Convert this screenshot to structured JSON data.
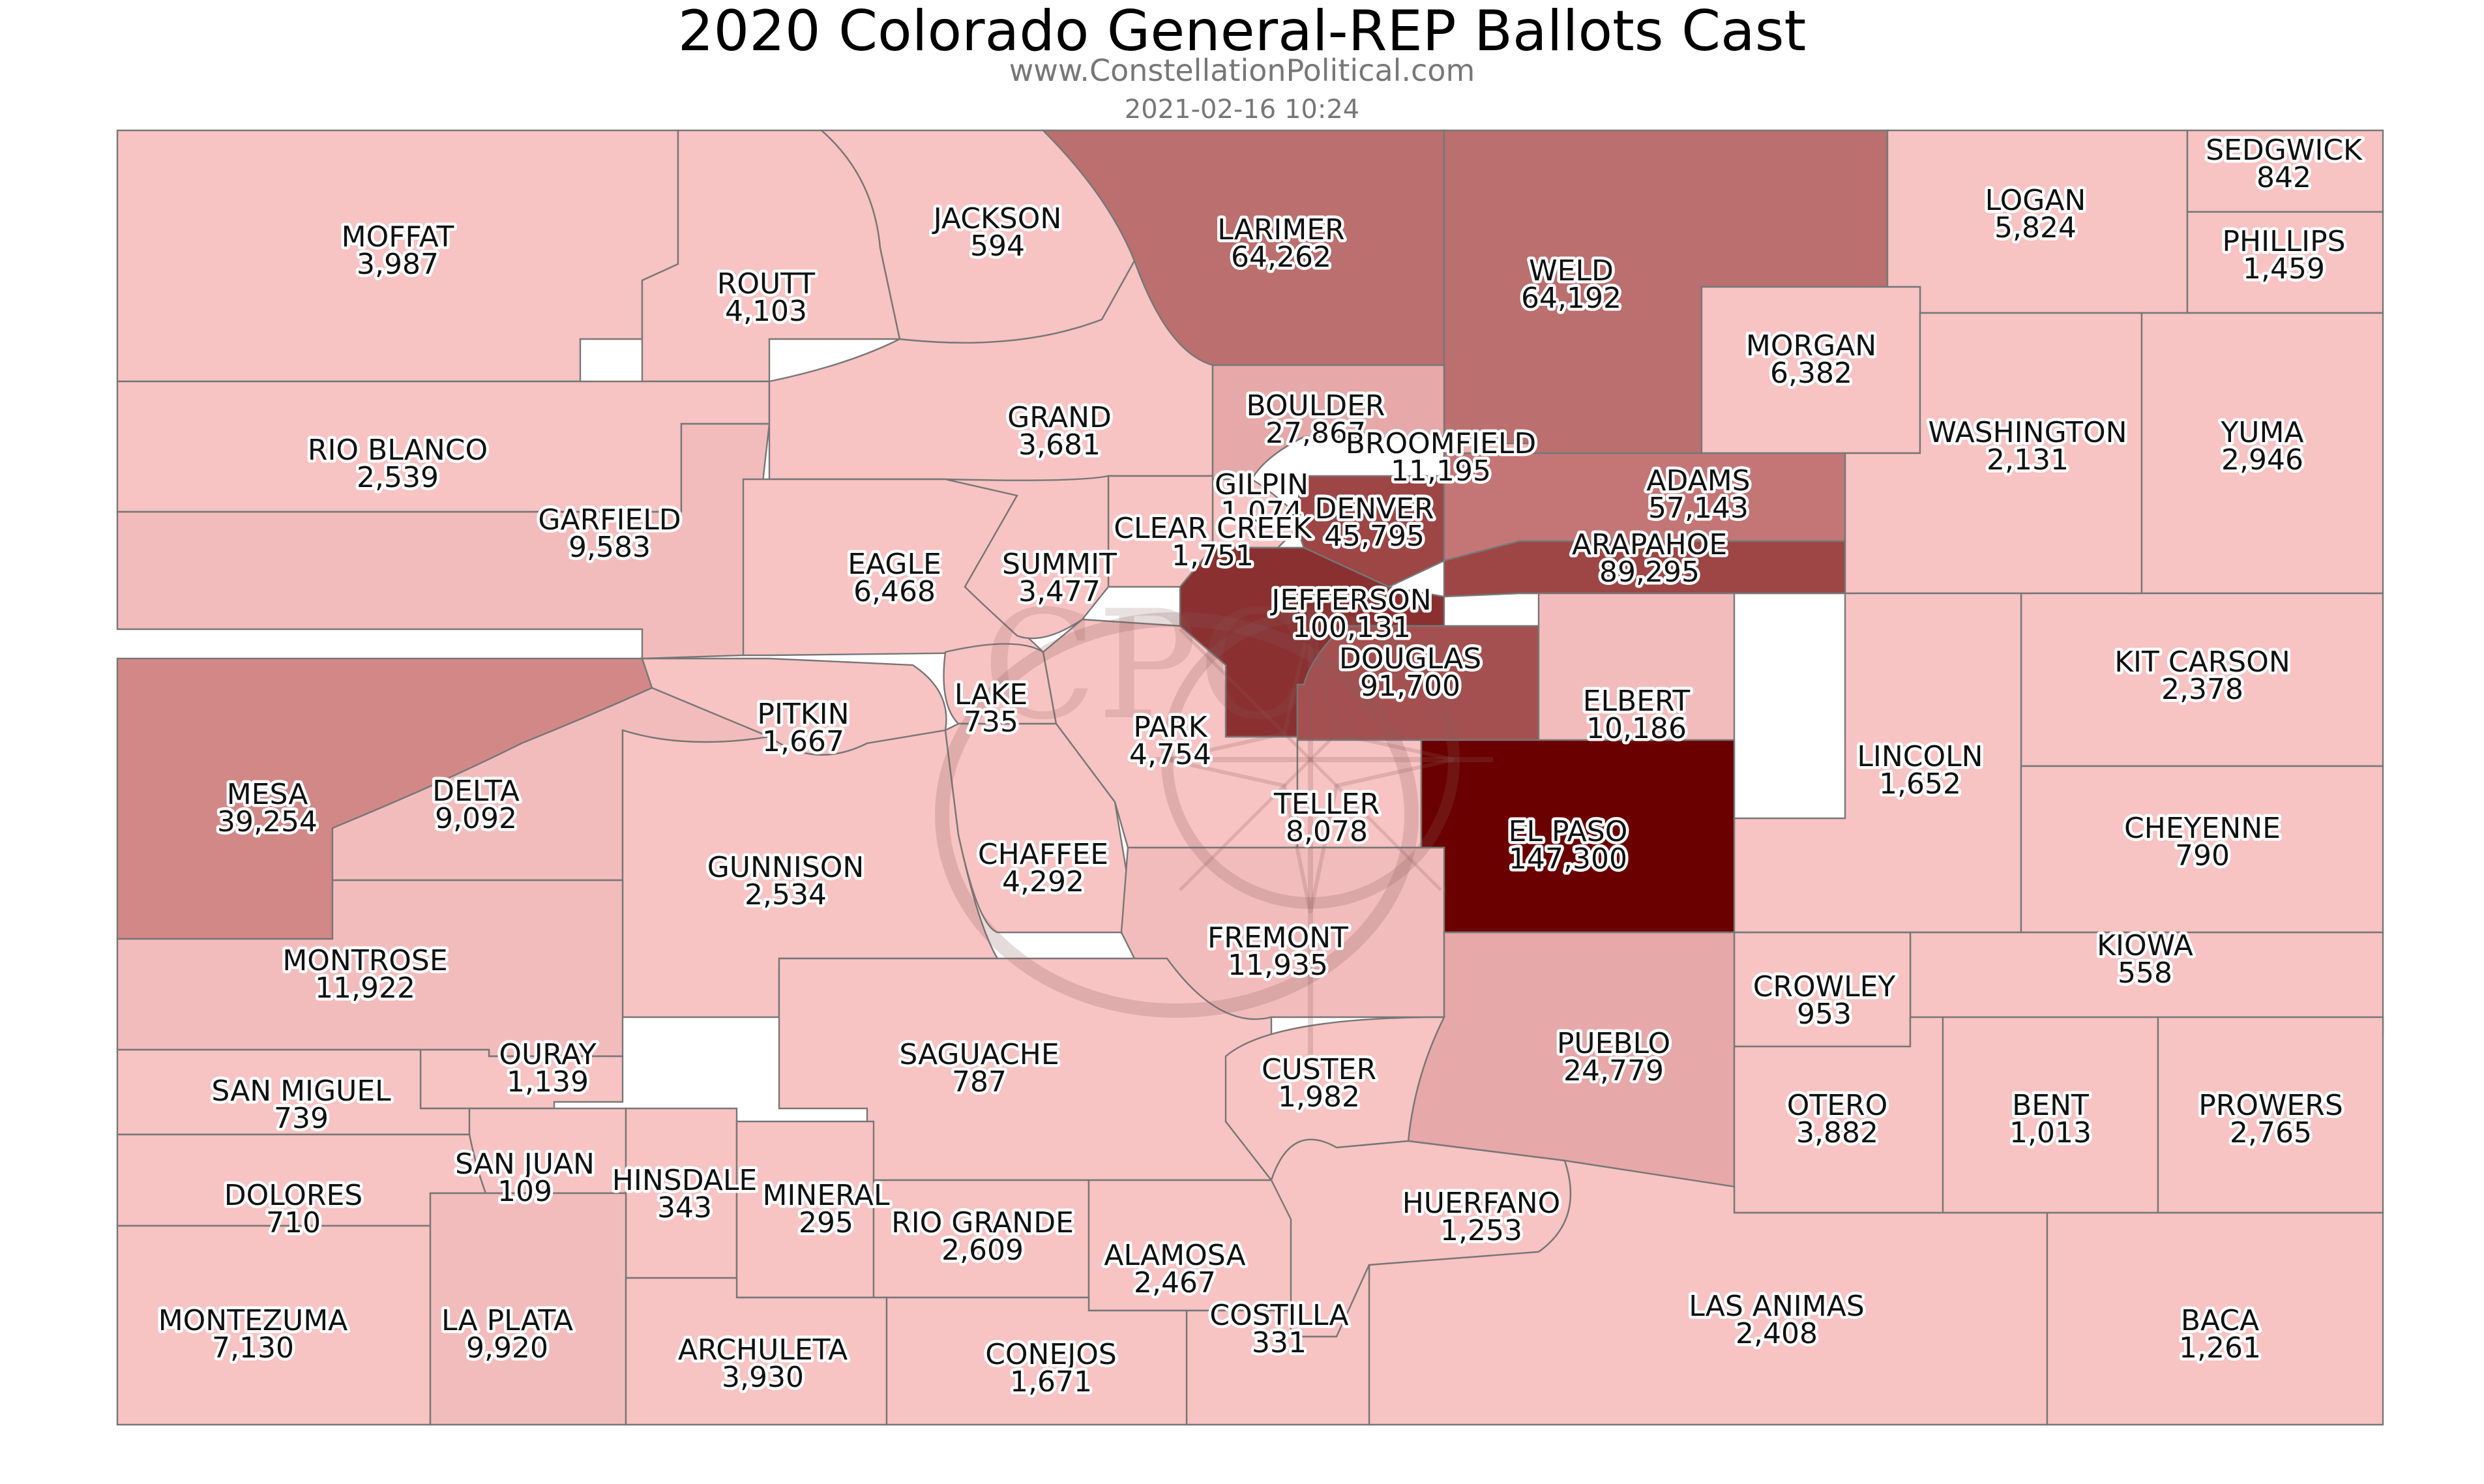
{
  "title": "2020 Colorado General-REP Ballots Cast",
  "subtitle": "www.ConstellationPolitical.com",
  "timestamp": "2021-02-16 10:24",
  "colors": {
    "background": "#ffffff",
    "border": "#777777",
    "scale": [
      "#f8c3c3",
      "#f3bcbc",
      "#eeb4b4",
      "#e6a8a8",
      "#d38888",
      "#c47676",
      "#bb6f6f",
      "#9e4545",
      "#8a3030",
      "#6b0000"
    ]
  },
  "watermark_text": "CPC",
  "counties": [
    {
      "name": "MOFFAT",
      "value": "3,987",
      "color": "#f8c3c3"
    },
    {
      "name": "ROUTT",
      "value": "4,103",
      "color": "#f8c3c3"
    },
    {
      "name": "JACKSON",
      "value": "594",
      "color": "#f8c3c3"
    },
    {
      "name": "LARIMER",
      "value": "64,262",
      "color": "#bb6f6f"
    },
    {
      "name": "WELD",
      "value": "64,192",
      "color": "#bb6f6f"
    },
    {
      "name": "LOGAN",
      "value": "5,824",
      "color": "#f8c3c3"
    },
    {
      "name": "SEDGWICK",
      "value": "842",
      "color": "#f8c3c3"
    },
    {
      "name": "PHILLIPS",
      "value": "1,459",
      "color": "#f8c3c3"
    },
    {
      "name": "MORGAN",
      "value": "6,382",
      "color": "#f8c3c3"
    },
    {
      "name": "WASHINGTON",
      "value": "2,131",
      "color": "#f8c3c3"
    },
    {
      "name": "YUMA",
      "value": "2,946",
      "color": "#f8c3c3"
    },
    {
      "name": "RIO BLANCO",
      "value": "2,539",
      "color": "#f8c3c3"
    },
    {
      "name": "GARFIELD",
      "value": "9,583",
      "color": "#f3bcbc"
    },
    {
      "name": "GRAND",
      "value": "3,681",
      "color": "#f8c3c3"
    },
    {
      "name": "BOULDER",
      "value": "27,867",
      "color": "#e6a8a8"
    },
    {
      "name": "BROOMFIELD",
      "value": "11,195",
      "color": "#eeb4b4"
    },
    {
      "name": "GILPIN",
      "value": "1,074",
      "color": "#f8c3c3"
    },
    {
      "name": "CLEAR CREEK",
      "value": "1,751",
      "color": "#f8c3c3"
    },
    {
      "name": "DENVER",
      "value": "45,795",
      "color": "#9e4545"
    },
    {
      "name": "ADAMS",
      "value": "57,143",
      "color": "#c47676"
    },
    {
      "name": "ARAPAHOE",
      "value": "89,295",
      "color": "#9e4545"
    },
    {
      "name": "EAGLE",
      "value": "6,468",
      "color": "#f8c3c3"
    },
    {
      "name": "SUMMIT",
      "value": "3,477",
      "color": "#f8c3c3"
    },
    {
      "name": "JEFFERSON",
      "value": "100,131",
      "color": "#8a3030"
    },
    {
      "name": "DOUGLAS",
      "value": "91,700",
      "color": "#a55050"
    },
    {
      "name": "MESA",
      "value": "39,254",
      "color": "#d38888"
    },
    {
      "name": "PITKIN",
      "value": "1,667",
      "color": "#f8c3c3"
    },
    {
      "name": "LAKE",
      "value": "735",
      "color": "#f8c3c3"
    },
    {
      "name": "PARK",
      "value": "4,754",
      "color": "#f8c3c3"
    },
    {
      "name": "ELBERT",
      "value": "10,186",
      "color": "#f3bcbc"
    },
    {
      "name": "KIT CARSON",
      "value": "2,378",
      "color": "#f8c3c3"
    },
    {
      "name": "DELTA",
      "value": "9,092",
      "color": "#f3bcbc"
    },
    {
      "name": "LINCOLN",
      "value": "1,652",
      "color": "#f8c3c3"
    },
    {
      "name": "TELLER",
      "value": "8,078",
      "color": "#f8c3c3"
    },
    {
      "name": "EL PASO",
      "value": "147,300",
      "color": "#6b0000"
    },
    {
      "name": "CHEYENNE",
      "value": "790",
      "color": "#f8c3c3"
    },
    {
      "name": "GUNNISON",
      "value": "2,534",
      "color": "#f8c3c3"
    },
    {
      "name": "CHAFFEE",
      "value": "4,292",
      "color": "#f8c3c3"
    },
    {
      "name": "FREMONT",
      "value": "11,935",
      "color": "#f3bcbc"
    },
    {
      "name": "MONTROSE",
      "value": "11,922",
      "color": "#f3bcbc"
    },
    {
      "name": "KIOWA",
      "value": "558",
      "color": "#f8c3c3"
    },
    {
      "name": "CROWLEY",
      "value": "953",
      "color": "#f8c3c3"
    },
    {
      "name": "OURAY",
      "value": "1,139",
      "color": "#f8c3c3"
    },
    {
      "name": "SAGUACHE",
      "value": "787",
      "color": "#f8c3c3"
    },
    {
      "name": "PUEBLO",
      "value": "24,779",
      "color": "#e6a8a8"
    },
    {
      "name": "CUSTER",
      "value": "1,982",
      "color": "#f8c3c3"
    },
    {
      "name": "SAN MIGUEL",
      "value": "739",
      "color": "#f8c3c3"
    },
    {
      "name": "OTERO",
      "value": "3,882",
      "color": "#f8c3c3"
    },
    {
      "name": "BENT",
      "value": "1,013",
      "color": "#f8c3c3"
    },
    {
      "name": "PROWERS",
      "value": "2,765",
      "color": "#f8c3c3"
    },
    {
      "name": "SAN JUAN",
      "value": "109",
      "color": "#f8c3c3"
    },
    {
      "name": "HINSDALE",
      "value": "343",
      "color": "#f8c3c3"
    },
    {
      "name": "DOLORES",
      "value": "710",
      "color": "#f8c3c3"
    },
    {
      "name": "MINERAL",
      "value": "295",
      "color": "#f8c3c3"
    },
    {
      "name": "RIO GRANDE",
      "value": "2,609",
      "color": "#f8c3c3"
    },
    {
      "name": "HUERFANO",
      "value": "1,253",
      "color": "#f8c3c3"
    },
    {
      "name": "ALAMOSA",
      "value": "2,467",
      "color": "#f8c3c3"
    },
    {
      "name": "LAS ANIMAS",
      "value": "2,408",
      "color": "#f8c3c3"
    },
    {
      "name": "MONTEZUMA",
      "value": "7,130",
      "color": "#f8c3c3"
    },
    {
      "name": "LA PLATA",
      "value": "9,920",
      "color": "#f3bcbc"
    },
    {
      "name": "COSTILLA",
      "value": "331",
      "color": "#f8c3c3"
    },
    {
      "name": "BACA",
      "value": "1,261",
      "color": "#f8c3c3"
    },
    {
      "name": "ARCHULETA",
      "value": "3,930",
      "color": "#f8c3c3"
    },
    {
      "name": "CONEJOS",
      "value": "1,671",
      "color": "#f8c3c3"
    }
  ]
}
